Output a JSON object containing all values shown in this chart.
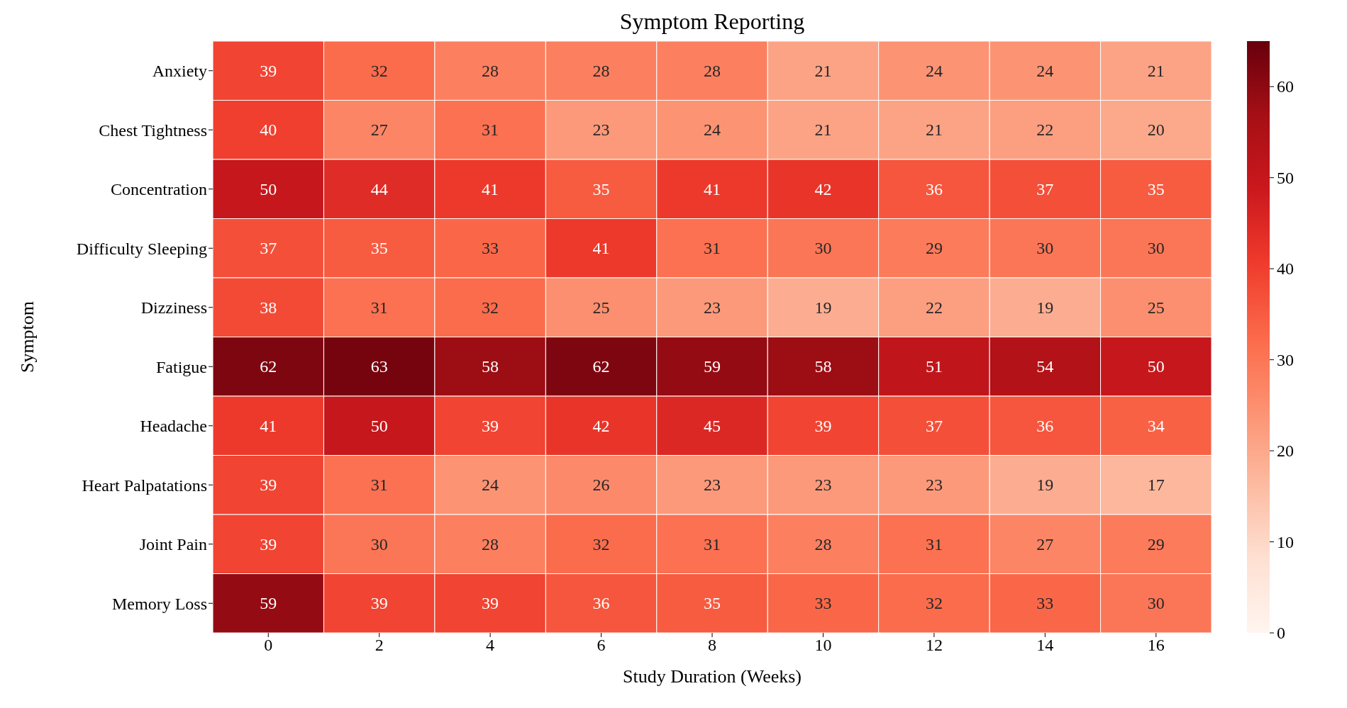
{
  "chart_data": {
    "type": "heatmap",
    "title": "Symptom Reporting",
    "xlabel": "Study Duration (Weeks)",
    "ylabel": "Symptom",
    "categories": [
      "0",
      "2",
      "4",
      "6",
      "8",
      "10",
      "12",
      "14",
      "16"
    ],
    "y_categories": [
      "Anxiety",
      "Chest Tightness",
      "Concentration",
      "Difficulty Sleeping",
      "Dizziness",
      "Fatigue",
      "Headache",
      "Heart Palpatations",
      "Joint Pain",
      "Memory Loss"
    ],
    "cells": [
      [
        39,
        32,
        28,
        28,
        28,
        21,
        24,
        24,
        21
      ],
      [
        40,
        27,
        31,
        23,
        24,
        21,
        21,
        22,
        20
      ],
      [
        50,
        44,
        41,
        35,
        41,
        42,
        36,
        37,
        35
      ],
      [
        37,
        35,
        33,
        41,
        31,
        30,
        29,
        30,
        30
      ],
      [
        38,
        31,
        32,
        25,
        23,
        19,
        22,
        19,
        25
      ],
      [
        62,
        63,
        58,
        62,
        59,
        58,
        51,
        54,
        50
      ],
      [
        41,
        50,
        39,
        42,
        45,
        39,
        37,
        36,
        34
      ],
      [
        39,
        31,
        24,
        26,
        23,
        23,
        23,
        19,
        17
      ],
      [
        39,
        30,
        28,
        32,
        31,
        28,
        31,
        27,
        29
      ],
      [
        59,
        39,
        39,
        36,
        35,
        33,
        32,
        33,
        30
      ]
    ],
    "data_labels": true,
    "clim": [
      0,
      65
    ],
    "cticks": [
      0,
      10,
      20,
      30,
      40,
      50,
      60
    ]
  }
}
